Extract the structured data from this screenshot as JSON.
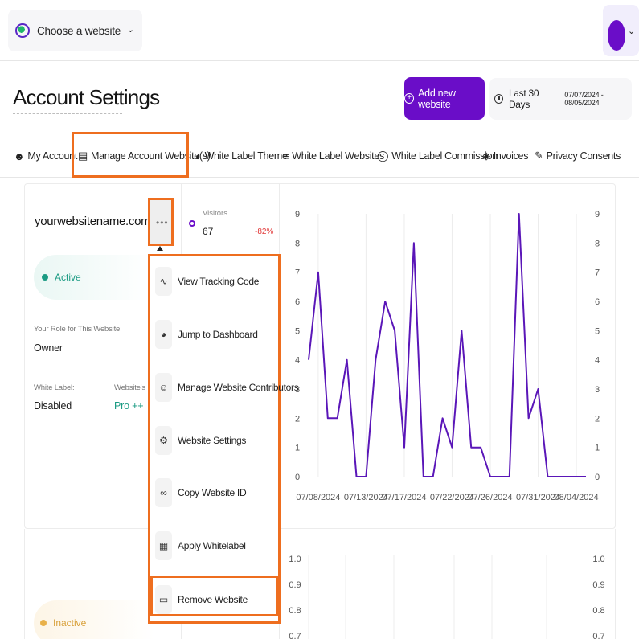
{
  "topbar": {
    "site_select_label": "Choose a website"
  },
  "header": {
    "title": "Account Settings",
    "add_button_label": "Add new website",
    "date_range_label": "Last 30 Days",
    "date_range_dates": "07/07/2024 - 08/05/2024"
  },
  "tabs": [
    {
      "label": "My Account",
      "icon": "user-icon"
    },
    {
      "label": "Manage Account Website(s)",
      "icon": "stack-icon"
    },
    {
      "label": "White Label Theme",
      "icon": "half-circle-icon"
    },
    {
      "label": "White Label Websites",
      "icon": "list-icon"
    },
    {
      "label": "White Label Commission",
      "icon": "tag-icon"
    },
    {
      "label": "Invoices",
      "icon": "layers-icon"
    },
    {
      "label": "Privacy Consents",
      "icon": "pen-icon"
    }
  ],
  "website": {
    "name": "yourwebsitename.com",
    "status": "Active",
    "role_label": "Your Role for This Website:",
    "role_value": "Owner",
    "white_label_label": "White Label:",
    "white_label_value": "Disabled",
    "plan_label": "Website's Pri",
    "plan_value": "Pro ++",
    "visitors_label": "Visitors",
    "visitors_value": "67",
    "visitors_change": "-82%"
  },
  "website2": {
    "status": "Inactive"
  },
  "menu": [
    {
      "label": "View Tracking Code",
      "icon": "pulse-icon"
    },
    {
      "label": "Jump to Dashboard",
      "icon": "pie-icon"
    },
    {
      "label": "Manage Website Contributors",
      "icon": "add-user-icon"
    },
    {
      "label": "Website Settings",
      "icon": "gear-icon"
    },
    {
      "label": "Copy Website ID",
      "icon": "link-icon"
    },
    {
      "label": "Apply Whitelabel",
      "icon": "grid-icon"
    },
    {
      "label": "Remove Website",
      "icon": "trash-icon"
    }
  ],
  "colors": {
    "accent": "#6a0dc8",
    "highlight": "#ee6e1f",
    "active": "#1b9b83",
    "inactive": "#d9a13b",
    "negative": "#e23a3a"
  },
  "chart_data": [
    {
      "type": "line",
      "x_tick_labels": [
        "07/08/2024",
        "07/13/2024",
        "07/17/2024",
        "07/22/2024",
        "07/26/2024",
        "07/31/2024",
        "08/04/2024"
      ],
      "x": [
        "07/07/2024",
        "07/08/2024",
        "07/09/2024",
        "07/10/2024",
        "07/11/2024",
        "07/12/2024",
        "07/13/2024",
        "07/14/2024",
        "07/15/2024",
        "07/16/2024",
        "07/17/2024",
        "07/18/2024",
        "07/19/2024",
        "07/20/2024",
        "07/21/2024",
        "07/22/2024",
        "07/23/2024",
        "07/24/2024",
        "07/25/2024",
        "07/26/2024",
        "07/27/2024",
        "07/28/2024",
        "07/29/2024",
        "07/30/2024",
        "07/31/2024",
        "08/01/2024",
        "08/02/2024",
        "08/03/2024",
        "08/04/2024",
        "08/05/2024"
      ],
      "series": [
        {
          "values": [
            4,
            7,
            2,
            2,
            4,
            0,
            0,
            4,
            6,
            5,
            1,
            8,
            0,
            0,
            2,
            1,
            5,
            1,
            1,
            0,
            0,
            0,
            9,
            2,
            3,
            0,
            0,
            0,
            0,
            0
          ],
          "color": "#5a16b8"
        }
      ],
      "yticks": [
        0,
        1,
        2,
        3,
        4,
        5,
        6,
        7,
        8,
        9
      ],
      "ylim": [
        0,
        9
      ],
      "secondary_yticks": [
        0,
        1,
        2,
        3,
        4,
        5,
        6,
        7,
        8,
        9
      ],
      "grid": "vertical"
    },
    {
      "type": "line",
      "series": [],
      "yticks": [
        "1.0",
        "0.9",
        "0.8",
        "0.7"
      ],
      "secondary_yticks": [
        "1.0",
        "0.9",
        "0.8",
        "0.7"
      ],
      "ylim": [
        0,
        1
      ]
    }
  ]
}
